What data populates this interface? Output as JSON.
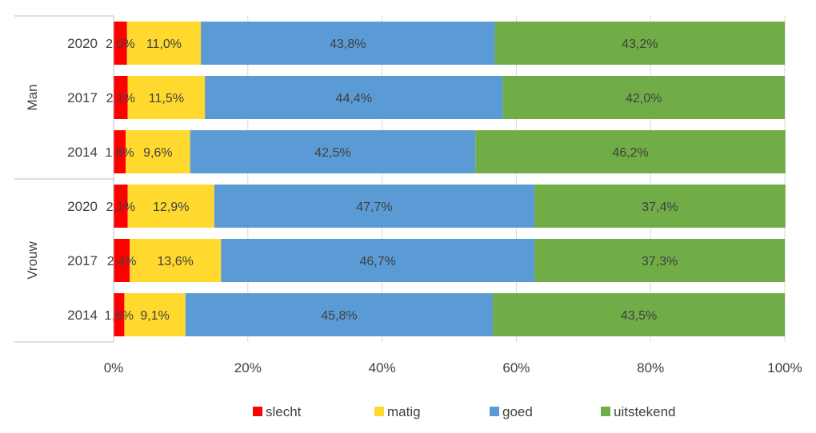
{
  "chart_data": {
    "type": "bar",
    "orientation": "horizontal",
    "stacked": true,
    "percent_stacked": true,
    "groups": [
      {
        "label": "Man",
        "categories": [
          "2020",
          "2017",
          "2014"
        ]
      },
      {
        "label": "Vrouw",
        "categories": [
          "2020",
          "2017",
          "2014"
        ]
      }
    ],
    "series": [
      {
        "name": "slecht",
        "color": "#FF0000",
        "values": [
          2.0,
          2.1,
          1.8,
          2.1,
          2.4,
          1.6
        ],
        "labels": [
          "2,0%",
          "2,1%",
          "1,8%",
          "2,1%",
          "2,4%",
          "1,6%"
        ]
      },
      {
        "name": "matig",
        "color": "#FFD92E",
        "values": [
          11.0,
          11.5,
          9.6,
          12.9,
          13.6,
          9.1
        ],
        "labels": [
          "11,0%",
          "11,5%",
          "9,6%",
          "12,9%",
          "13,6%",
          "9,1%"
        ]
      },
      {
        "name": "goed",
        "color": "#5B9BD5",
        "values": [
          43.8,
          44.4,
          42.5,
          47.7,
          46.7,
          45.8
        ],
        "labels": [
          "43,8%",
          "44,4%",
          "42,5%",
          "47,7%",
          "46,7%",
          "45,8%"
        ]
      },
      {
        "name": "uitstekend",
        "color": "#70AD47",
        "values": [
          43.2,
          42.0,
          46.2,
          37.4,
          37.3,
          43.5
        ],
        "labels": [
          "43,2%",
          "42,0%",
          "46,2%",
          "37,4%",
          "37,3%",
          "43,5%"
        ]
      }
    ],
    "xlim": [
      0,
      100
    ],
    "xticks": [
      "0%",
      "20%",
      "40%",
      "60%",
      "80%",
      "100%"
    ],
    "legend_position": "bottom",
    "grid": "vertical"
  }
}
